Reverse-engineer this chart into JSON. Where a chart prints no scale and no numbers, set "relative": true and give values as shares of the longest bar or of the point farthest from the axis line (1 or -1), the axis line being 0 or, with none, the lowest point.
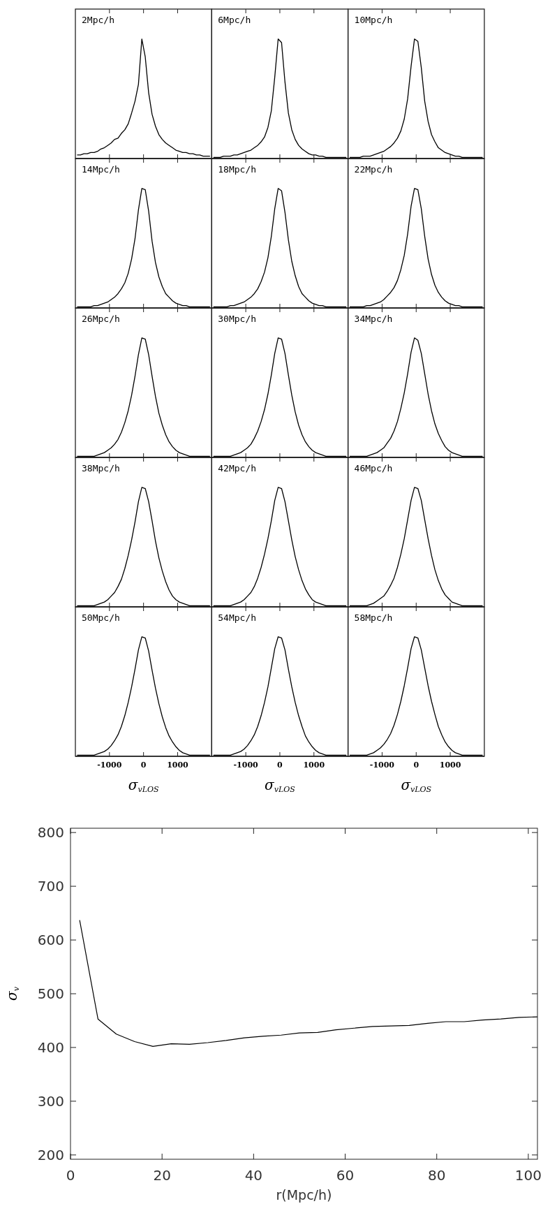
{
  "chart_data": [
    {
      "type": "line",
      "title": "2Mpc/h",
      "color": "#000000",
      "relative": true,
      "categories": [
        null,
        null,
        null,
        null,
        null,
        null,
        null,
        null,
        null,
        null,
        null,
        null,
        null,
        null,
        null,
        null,
        null,
        null,
        null,
        null,
        null,
        null,
        null,
        null,
        null,
        null,
        null,
        null,
        null,
        null,
        null,
        null,
        null,
        null,
        null,
        null,
        null,
        null,
        null,
        null
      ],
      "values": [
        0.03,
        0.03,
        0.04,
        0.04,
        0.05,
        0.05,
        0.06,
        0.08,
        0.09,
        0.11,
        0.13,
        0.16,
        0.17,
        0.21,
        0.24,
        0.29,
        0.38,
        0.48,
        0.62,
        1,
        0.85,
        0.55,
        0.37,
        0.27,
        0.2,
        0.16,
        0.13,
        0.11,
        0.09,
        0.07,
        0.06,
        0.05,
        0.05,
        0.04,
        0.04,
        0.03,
        0.03,
        0.02,
        0.02,
        0.02
      ]
    },
    {
      "type": "line",
      "title": "6Mpc/h",
      "color": "#000000",
      "relative": true,
      "categories": [
        null,
        null,
        null,
        null,
        null,
        null,
        null,
        null,
        null,
        null,
        null,
        null,
        null,
        null,
        null,
        null,
        null,
        null,
        null,
        null,
        null,
        null,
        null,
        null,
        null,
        null,
        null,
        null,
        null,
        null,
        null,
        null,
        null,
        null,
        null,
        null,
        null,
        null,
        null,
        null
      ],
      "values": [
        0.01,
        0.01,
        0.01,
        0.02,
        0.02,
        0.02,
        0.03,
        0.03,
        0.04,
        0.05,
        0.06,
        0.07,
        0.09,
        0.11,
        0.14,
        0.18,
        0.26,
        0.4,
        0.68,
        1,
        0.97,
        0.64,
        0.38,
        0.24,
        0.16,
        0.11,
        0.08,
        0.06,
        0.04,
        0.03,
        0.03,
        0.02,
        0.02,
        0.01,
        0.01,
        0.01,
        0.01,
        0.01,
        0.01,
        0.01
      ]
    },
    {
      "type": "line",
      "title": "10Mpc/h",
      "color": "#000000",
      "relative": true,
      "categories": [
        null,
        null,
        null,
        null,
        null,
        null,
        null,
        null,
        null,
        null,
        null,
        null,
        null,
        null,
        null,
        null,
        null,
        null,
        null,
        null,
        null,
        null,
        null,
        null,
        null,
        null,
        null,
        null,
        null,
        null,
        null,
        null,
        null,
        null,
        null,
        null,
        null,
        null,
        null,
        null
      ],
      "values": [
        0.01,
        0.01,
        0.01,
        0.01,
        0.02,
        0.02,
        0.02,
        0.03,
        0.04,
        0.05,
        0.06,
        0.08,
        0.1,
        0.13,
        0.17,
        0.23,
        0.33,
        0.5,
        0.77,
        1,
        0.98,
        0.76,
        0.48,
        0.31,
        0.2,
        0.14,
        0.09,
        0.07,
        0.05,
        0.04,
        0.03,
        0.02,
        0.02,
        0.01,
        0.01,
        0.01,
        0.01,
        0.01,
        0.01,
        0.01
      ]
    },
    {
      "type": "line",
      "title": "14Mpc/h",
      "color": "#000000",
      "relative": true,
      "categories": [
        null,
        null,
        null,
        null,
        null,
        null,
        null,
        null,
        null,
        null,
        null,
        null,
        null,
        null,
        null,
        null,
        null,
        null,
        null,
        null,
        null,
        null,
        null,
        null,
        null,
        null,
        null,
        null,
        null,
        null,
        null,
        null,
        null,
        null,
        null,
        null,
        null,
        null,
        null,
        null
      ],
      "values": [
        0.01,
        0.01,
        0.01,
        0.01,
        0.01,
        0.02,
        0.02,
        0.03,
        0.04,
        0.05,
        0.07,
        0.09,
        0.12,
        0.16,
        0.21,
        0.29,
        0.41,
        0.58,
        0.82,
        1,
        0.99,
        0.81,
        0.56,
        0.38,
        0.26,
        0.18,
        0.12,
        0.09,
        0.06,
        0.04,
        0.03,
        0.02,
        0.02,
        0.01,
        0.01,
        0.01,
        0.01,
        0.01,
        0.01,
        0.01
      ]
    },
    {
      "type": "line",
      "title": "18Mpc/h",
      "color": "#000000",
      "relative": true,
      "categories": [
        null,
        null,
        null,
        null,
        null,
        null,
        null,
        null,
        null,
        null,
        null,
        null,
        null,
        null,
        null,
        null,
        null,
        null,
        null,
        null,
        null,
        null,
        null,
        null,
        null,
        null,
        null,
        null,
        null,
        null,
        null,
        null,
        null,
        null,
        null,
        null,
        null,
        null,
        null,
        null
      ],
      "values": [
        0.01,
        0.01,
        0.01,
        0.01,
        0.01,
        0.02,
        0.02,
        0.03,
        0.04,
        0.05,
        0.07,
        0.09,
        0.12,
        0.16,
        0.22,
        0.3,
        0.42,
        0.6,
        0.83,
        1,
        0.98,
        0.8,
        0.57,
        0.39,
        0.27,
        0.18,
        0.12,
        0.09,
        0.06,
        0.04,
        0.03,
        0.02,
        0.02,
        0.01,
        0.01,
        0.01,
        0.01,
        0.01,
        0.01,
        0.01
      ]
    },
    {
      "type": "line",
      "title": "22Mpc/h",
      "color": "#000000",
      "relative": true,
      "categories": [
        null,
        null,
        null,
        null,
        null,
        null,
        null,
        null,
        null,
        null,
        null,
        null,
        null,
        null,
        null,
        null,
        null,
        null,
        null,
        null,
        null,
        null,
        null,
        null,
        null,
        null,
        null,
        null,
        null,
        null,
        null,
        null,
        null,
        null,
        null,
        null,
        null,
        null,
        null,
        null
      ],
      "values": [
        0.01,
        0.01,
        0.01,
        0.01,
        0.01,
        0.02,
        0.02,
        0.03,
        0.04,
        0.05,
        0.07,
        0.1,
        0.13,
        0.17,
        0.23,
        0.32,
        0.44,
        0.62,
        0.85,
        1,
        0.99,
        0.83,
        0.6,
        0.41,
        0.28,
        0.19,
        0.13,
        0.09,
        0.06,
        0.04,
        0.03,
        0.02,
        0.02,
        0.01,
        0.01,
        0.01,
        0.01,
        0.01,
        0.01,
        0.01
      ]
    },
    {
      "type": "line",
      "title": "26Mpc/h",
      "color": "#000000",
      "relative": true,
      "categories": [
        null,
        null,
        null,
        null,
        null,
        null,
        null,
        null,
        null,
        null,
        null,
        null,
        null,
        null,
        null,
        null,
        null,
        null,
        null,
        null,
        null,
        null,
        null,
        null,
        null,
        null,
        null,
        null,
        null,
        null,
        null,
        null,
        null,
        null,
        null,
        null,
        null,
        null,
        null,
        null
      ],
      "values": [
        0.01,
        0.01,
        0.01,
        0.01,
        0.01,
        0.01,
        0.02,
        0.03,
        0.04,
        0.06,
        0.08,
        0.11,
        0.15,
        0.21,
        0.29,
        0.39,
        0.52,
        0.68,
        0.86,
        1,
        0.99,
        0.86,
        0.68,
        0.51,
        0.37,
        0.27,
        0.19,
        0.13,
        0.09,
        0.06,
        0.04,
        0.03,
        0.02,
        0.01,
        0.01,
        0.01,
        0.01,
        0.01,
        0.01,
        0.01
      ]
    },
    {
      "type": "line",
      "title": "30Mpc/h",
      "color": "#000000",
      "relative": true,
      "categories": [
        null,
        null,
        null,
        null,
        null,
        null,
        null,
        null,
        null,
        null,
        null,
        null,
        null,
        null,
        null,
        null,
        null,
        null,
        null,
        null,
        null,
        null,
        null,
        null,
        null,
        null,
        null,
        null,
        null,
        null,
        null,
        null,
        null,
        null,
        null,
        null,
        null,
        null,
        null,
        null
      ],
      "values": [
        0.01,
        0.01,
        0.01,
        0.01,
        0.01,
        0.01,
        0.02,
        0.03,
        0.04,
        0.06,
        0.08,
        0.11,
        0.16,
        0.22,
        0.3,
        0.4,
        0.53,
        0.69,
        0.87,
        1,
        0.99,
        0.87,
        0.69,
        0.52,
        0.38,
        0.27,
        0.19,
        0.13,
        0.09,
        0.06,
        0.04,
        0.03,
        0.02,
        0.01,
        0.01,
        0.01,
        0.01,
        0.01,
        0.01,
        0.01
      ]
    },
    {
      "type": "line",
      "title": "34Mpc/h",
      "color": "#000000",
      "relative": true,
      "categories": [
        null,
        null,
        null,
        null,
        null,
        null,
        null,
        null,
        null,
        null,
        null,
        null,
        null,
        null,
        null,
        null,
        null,
        null,
        null,
        null,
        null,
        null,
        null,
        null,
        null,
        null,
        null,
        null,
        null,
        null,
        null,
        null,
        null,
        null,
        null,
        null,
        null,
        null,
        null,
        null
      ],
      "values": [
        0.01,
        0.01,
        0.01,
        0.01,
        0.01,
        0.01,
        0.02,
        0.03,
        0.04,
        0.06,
        0.08,
        0.12,
        0.16,
        0.22,
        0.3,
        0.41,
        0.54,
        0.7,
        0.88,
        1,
        0.98,
        0.87,
        0.7,
        0.53,
        0.39,
        0.28,
        0.2,
        0.14,
        0.09,
        0.06,
        0.04,
        0.03,
        0.02,
        0.01,
        0.01,
        0.01,
        0.01,
        0.01,
        0.01,
        0.01
      ]
    },
    {
      "type": "line",
      "title": "38Mpc/h",
      "color": "#000000",
      "relative": true,
      "categories": [
        null,
        null,
        null,
        null,
        null,
        null,
        null,
        null,
        null,
        null,
        null,
        null,
        null,
        null,
        null,
        null,
        null,
        null,
        null,
        null,
        null,
        null,
        null,
        null,
        null,
        null,
        null,
        null,
        null,
        null,
        null,
        null,
        null,
        null,
        null,
        null,
        null,
        null,
        null,
        null
      ],
      "values": [
        0.01,
        0.01,
        0.01,
        0.01,
        0.01,
        0.01,
        0.02,
        0.03,
        0.04,
        0.06,
        0.09,
        0.12,
        0.17,
        0.23,
        0.32,
        0.43,
        0.56,
        0.71,
        0.88,
        1,
        0.99,
        0.88,
        0.72,
        0.55,
        0.41,
        0.3,
        0.21,
        0.14,
        0.09,
        0.06,
        0.04,
        0.03,
        0.02,
        0.01,
        0.01,
        0.01,
        0.01,
        0.01,
        0.01,
        0.01
      ]
    },
    {
      "type": "line",
      "title": "42Mpc/h",
      "color": "#000000",
      "relative": true,
      "categories": [
        null,
        null,
        null,
        null,
        null,
        null,
        null,
        null,
        null,
        null,
        null,
        null,
        null,
        null,
        null,
        null,
        null,
        null,
        null,
        null,
        null,
        null,
        null,
        null,
        null,
        null,
        null,
        null,
        null,
        null,
        null,
        null,
        null,
        null,
        null,
        null,
        null,
        null,
        null,
        null
      ],
      "values": [
        0.01,
        0.01,
        0.01,
        0.01,
        0.01,
        0.01,
        0.02,
        0.03,
        0.04,
        0.06,
        0.09,
        0.12,
        0.17,
        0.24,
        0.33,
        0.44,
        0.57,
        0.72,
        0.89,
        1,
        0.99,
        0.88,
        0.72,
        0.56,
        0.42,
        0.31,
        0.22,
        0.15,
        0.1,
        0.06,
        0.04,
        0.03,
        0.02,
        0.01,
        0.01,
        0.01,
        0.01,
        0.01,
        0.01,
        0.01
      ]
    },
    {
      "type": "line",
      "title": "46Mpc/h",
      "color": "#000000",
      "relative": true,
      "categories": [
        null,
        null,
        null,
        null,
        null,
        null,
        null,
        null,
        null,
        null,
        null,
        null,
        null,
        null,
        null,
        null,
        null,
        null,
        null,
        null,
        null,
        null,
        null,
        null,
        null,
        null,
        null,
        null,
        null,
        null,
        null,
        null,
        null,
        null,
        null,
        null,
        null,
        null,
        null,
        null
      ],
      "values": [
        0.01,
        0.01,
        0.01,
        0.01,
        0.01,
        0.01,
        0.02,
        0.03,
        0.05,
        0.07,
        0.09,
        0.13,
        0.18,
        0.24,
        0.33,
        0.44,
        0.57,
        0.73,
        0.89,
        1,
        0.99,
        0.89,
        0.73,
        0.57,
        0.43,
        0.31,
        0.22,
        0.15,
        0.1,
        0.07,
        0.04,
        0.03,
        0.02,
        0.01,
        0.01,
        0.01,
        0.01,
        0.01,
        0.01,
        0.01
      ]
    },
    {
      "type": "line",
      "title": "50Mpc/h",
      "color": "#000000",
      "relative": true,
      "xlim": [
        -2000,
        2000
      ],
      "xticks": [
        -1000,
        0,
        1000
      ],
      "tick_labels": "x",
      "xlabel": "σ$_{vLOS}$",
      "x": [
        -1950,
        -1850,
        -1750,
        -1650,
        -1550,
        -1450,
        -1350,
        -1250,
        -1150,
        -1050,
        -950,
        -850,
        -750,
        -650,
        -550,
        -450,
        -350,
        -250,
        -150,
        -50,
        50,
        150,
        250,
        350,
        450,
        550,
        650,
        750,
        850,
        950,
        1050,
        1150,
        1250,
        1350,
        1450,
        1550,
        1650,
        1750,
        1850,
        1950
      ],
      "values": [
        0.01,
        0.01,
        0.01,
        0.01,
        0.01,
        0.01,
        0.02,
        0.03,
        0.04,
        0.06,
        0.09,
        0.13,
        0.18,
        0.25,
        0.34,
        0.45,
        0.58,
        0.73,
        0.89,
        1,
        0.99,
        0.88,
        0.72,
        0.57,
        0.44,
        0.33,
        0.24,
        0.17,
        0.12,
        0.08,
        0.05,
        0.03,
        0.02,
        0.01,
        0.01,
        0.01,
        0.01,
        0.01,
        0.01,
        0.01
      ]
    },
    {
      "type": "line",
      "title": "54Mpc/h",
      "color": "#000000",
      "relative": true,
      "xlim": [
        -2000,
        2000
      ],
      "xticks": [
        -1000,
        0,
        1000
      ],
      "tick_labels": "x",
      "xlabel": "σ$_{vLOS}$",
      "x": [
        -1950,
        -1850,
        -1750,
        -1650,
        -1550,
        -1450,
        -1350,
        -1250,
        -1150,
        -1050,
        -950,
        -850,
        -750,
        -650,
        -550,
        -450,
        -350,
        -250,
        -150,
        -50,
        50,
        150,
        250,
        350,
        450,
        550,
        650,
        750,
        850,
        950,
        1050,
        1150,
        1250,
        1350,
        1450,
        1550,
        1650,
        1750,
        1850,
        1950
      ],
      "values": [
        0.01,
        0.01,
        0.01,
        0.01,
        0.01,
        0.01,
        0.02,
        0.03,
        0.04,
        0.06,
        0.09,
        0.13,
        0.18,
        0.25,
        0.34,
        0.45,
        0.58,
        0.74,
        0.9,
        1,
        0.99,
        0.89,
        0.73,
        0.58,
        0.45,
        0.34,
        0.25,
        0.17,
        0.12,
        0.08,
        0.05,
        0.03,
        0.02,
        0.01,
        0.01,
        0.01,
        0.01,
        0.01,
        0.01,
        0.01
      ]
    },
    {
      "type": "line",
      "title": "58Mpc/h",
      "color": "#000000",
      "relative": true,
      "xlim": [
        -2000,
        2000
      ],
      "xticks": [
        -1000,
        0,
        1000
      ],
      "tick_labels": "x",
      "xlabel": "σ$_{vLOS}$",
      "x": [
        -1950,
        -1850,
        -1750,
        -1650,
        -1550,
        -1450,
        -1350,
        -1250,
        -1150,
        -1050,
        -950,
        -850,
        -750,
        -650,
        -550,
        -450,
        -350,
        -250,
        -150,
        -50,
        50,
        150,
        250,
        350,
        450,
        550,
        650,
        750,
        850,
        950,
        1050,
        1150,
        1250,
        1350,
        1450,
        1550,
        1650,
        1750,
        1850,
        1950
      ],
      "values": [
        0.01,
        0.01,
        0.01,
        0.01,
        0.01,
        0.01,
        0.02,
        0.03,
        0.05,
        0.07,
        0.1,
        0.14,
        0.19,
        0.26,
        0.35,
        0.46,
        0.59,
        0.74,
        0.9,
        1,
        0.99,
        0.89,
        0.74,
        0.59,
        0.46,
        0.35,
        0.25,
        0.18,
        0.12,
        0.08,
        0.05,
        0.03,
        0.02,
        0.01,
        0.01,
        0.01,
        0.01,
        0.01,
        0.01,
        0.01
      ]
    },
    {
      "type": "line",
      "color": "#000000",
      "xlabel": "r(Mpc/h)",
      "ylabel": "σ$_{v}$",
      "xlim": [
        0,
        102
      ],
      "ylim": [
        192,
        808
      ],
      "xticks": [
        0,
        20,
        40,
        60,
        80,
        100
      ],
      "yticks": [
        200,
        300,
        400,
        500,
        600,
        700,
        800
      ],
      "grid": false,
      "marker": "none",
      "line_style": "solid",
      "x": [
        2,
        6,
        10,
        14,
        18,
        22,
        26,
        30,
        34,
        38,
        42,
        46,
        50,
        54,
        58,
        62,
        66,
        70,
        74,
        78,
        82,
        86,
        90,
        94,
        98,
        102
      ],
      "values": [
        637,
        453,
        425,
        411,
        402,
        407,
        406,
        409,
        413,
        418,
        421,
        423,
        427,
        428,
        433,
        436,
        439,
        440,
        441,
        445,
        448,
        448,
        451,
        453,
        456,
        457
      ]
    }
  ]
}
